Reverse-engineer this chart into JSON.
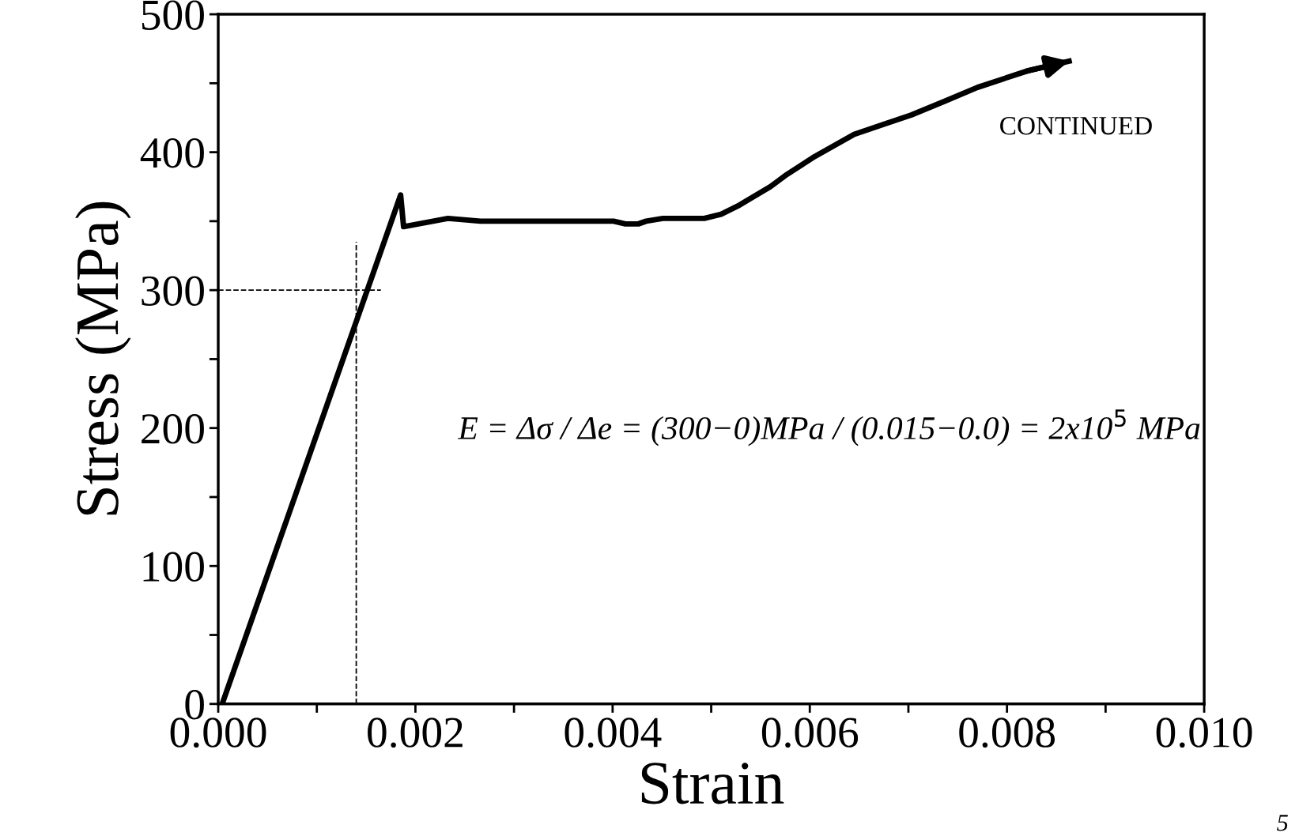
{
  "chart_data": {
    "type": "line",
    "xlabel": "Strain",
    "ylabel": "Stress (MPa)",
    "x": [
      4e-05,
      0.00185,
      0.00188,
      0.00218,
      0.00233,
      0.00266,
      0.00401,
      0.00413,
      0.00426,
      0.00434,
      0.00451,
      0.00493,
      0.0051,
      0.00527,
      0.0056,
      0.00577,
      0.00603,
      0.00645,
      0.00678,
      0.00703,
      0.00737,
      0.0077,
      0.00821,
      0.00863
    ],
    "series": [
      {
        "color": "#000000",
        "values": [
          0,
          369,
          346,
          350,
          352,
          350,
          350,
          348,
          348,
          350,
          352,
          352,
          355,
          361,
          375,
          384,
          396,
          413,
          421,
          427,
          437,
          447,
          459,
          466
        ]
      }
    ],
    "xlim": [
      0,
      0.01
    ],
    "ylim": [
      0,
      500
    ],
    "xticks": [
      {
        "value": 0,
        "label": "0.000"
      },
      {
        "value": 0.001,
        "label": null
      },
      {
        "value": 0.002,
        "label": "0.002"
      },
      {
        "value": 0.003,
        "label": null
      },
      {
        "value": 0.004,
        "label": "0.004"
      },
      {
        "value": 0.005,
        "label": null
      },
      {
        "value": 0.006,
        "label": "0.006"
      },
      {
        "value": 0.007,
        "label": null
      },
      {
        "value": 0.008,
        "label": "0.008"
      },
      {
        "value": 0.009,
        "label": null
      },
      {
        "value": 0.01,
        "label": "0.010"
      }
    ],
    "yticks": [
      0,
      {
        "value": 50,
        "label": null
      },
      100,
      {
        "value": 150,
        "label": null
      },
      200,
      {
        "value": 250,
        "label": null
      },
      300,
      {
        "value": 350,
        "label": null
      },
      400,
      {
        "value": 450,
        "label": null
      },
      500
    ],
    "ref_lines": [
      {
        "axis": "y",
        "value": 300,
        "color": "#000000",
        "line_style": "dashed"
      },
      {
        "axis": "x",
        "value": 0.0014,
        "color": "#000000",
        "line_style": "dashed"
      }
    ],
    "annotations": [
      "CONTINUED",
      "E = Δσ / Δe = (300−0)MPa / (0.015−0.0) = 2x10$^{5}$ MPa",
      "5"
    ],
    "grid": false,
    "legend": false,
    "marker": "none",
    "line_style": "solid"
  }
}
